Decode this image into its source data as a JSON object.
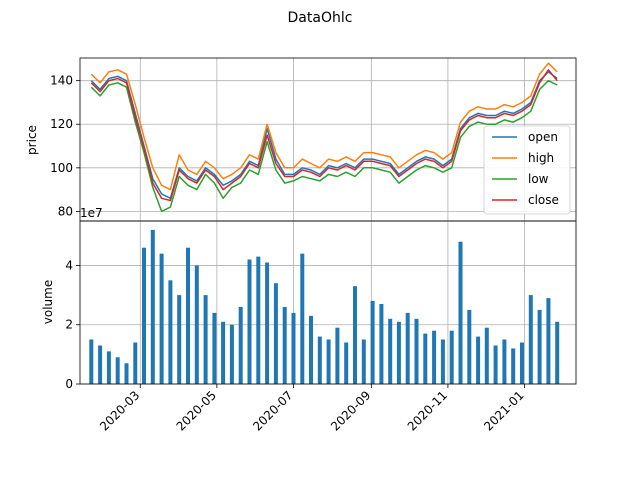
{
  "chart_data": [
    {
      "type": "line",
      "title": "DataOhlc",
      "ylabel": "price",
      "xlabel": "",
      "xlim": [
        "2020-01-13",
        "2021-02-11"
      ],
      "ylim": [
        75.6,
        150.4
      ],
      "yticks": [
        80,
        100,
        120,
        140
      ],
      "grid": true,
      "legend": "center-right",
      "colors": {
        "open": "#1f77b4",
        "high": "#ff7f0e",
        "low": "#2ca02c",
        "close": "#d62728"
      },
      "dates": [
        "2020-01-22",
        "2020-01-29",
        "2020-02-05",
        "2020-02-12",
        "2020-02-19",
        "2020-02-26",
        "2020-03-04",
        "2020-03-11",
        "2020-03-18",
        "2020-03-25",
        "2020-04-01",
        "2020-04-08",
        "2020-04-15",
        "2020-04-22",
        "2020-04-29",
        "2020-05-06",
        "2020-05-13",
        "2020-05-20",
        "2020-05-27",
        "2020-06-03",
        "2020-06-10",
        "2020-06-17",
        "2020-06-24",
        "2020-07-01",
        "2020-07-08",
        "2020-07-15",
        "2020-07-22",
        "2020-07-29",
        "2020-08-05",
        "2020-08-12",
        "2020-08-19",
        "2020-08-26",
        "2020-09-02",
        "2020-09-09",
        "2020-09-16",
        "2020-09-23",
        "2020-09-30",
        "2020-10-07",
        "2020-10-14",
        "2020-10-21",
        "2020-10-28",
        "2020-11-04",
        "2020-11-11",
        "2020-11-18",
        "2020-11-25",
        "2020-12-02",
        "2020-12-09",
        "2020-12-16",
        "2020-12-23",
        "2020-12-30",
        "2021-01-06",
        "2021-01-13",
        "2021-01-20",
        "2021-01-27"
      ],
      "series": [
        {
          "name": "open",
          "values": [
            140,
            136,
            141,
            142,
            140,
            125,
            110,
            95,
            88,
            86,
            100,
            96,
            94,
            100,
            97,
            92,
            94,
            97,
            103,
            101,
            118,
            104,
            97,
            97,
            100,
            99,
            97,
            101,
            100,
            102,
            100,
            104,
            104,
            103,
            102,
            97,
            100,
            103,
            105,
            104,
            101,
            104,
            118,
            123,
            125,
            124,
            124,
            126,
            125,
            127,
            130,
            140,
            144,
            141
          ]
        },
        {
          "name": "high",
          "values": [
            143,
            139,
            144,
            145,
            143,
            129,
            114,
            100,
            92,
            90,
            106,
            99,
            97,
            103,
            100,
            95,
            97,
            100,
            106,
            104,
            120,
            107,
            100,
            100,
            104,
            102,
            100,
            104,
            103,
            105,
            103,
            107,
            107,
            106,
            105,
            100,
            103,
            106,
            108,
            107,
            104,
            107,
            121,
            126,
            128,
            127,
            127,
            129,
            128,
            130,
            133,
            143,
            148,
            144
          ]
        },
        {
          "name": "low",
          "values": [
            137,
            133,
            138,
            139,
            137,
            121,
            107,
            91,
            80,
            82,
            96,
            92,
            90,
            97,
            93,
            86,
            91,
            93,
            99,
            97,
            112,
            99,
            93,
            94,
            96,
            95,
            94,
            97,
            96,
            98,
            96,
            100,
            100,
            99,
            98,
            93,
            96,
            99,
            101,
            100,
            98,
            100,
            114,
            119,
            121,
            120,
            120,
            122,
            121,
            123,
            126,
            136,
            140,
            138
          ]
        },
        {
          "name": "close",
          "values": [
            139,
            135,
            140,
            141,
            139,
            123,
            109,
            93,
            86,
            85,
            99,
            95,
            93,
            99,
            96,
            90,
            93,
            96,
            102,
            100,
            115,
            102,
            96,
            96,
            99,
            98,
            96,
            100,
            99,
            101,
            99,
            103,
            103,
            102,
            101,
            96,
            99,
            102,
            104,
            103,
            100,
            103,
            117,
            122,
            124,
            123,
            123,
            125,
            124,
            126,
            129,
            139,
            145,
            140
          ]
        }
      ]
    },
    {
      "type": "bar",
      "ylabel": "volume",
      "xlabel": "",
      "scale_label": "1e7",
      "xlim": [
        "2020-01-13",
        "2021-02-11"
      ],
      "ylim": [
        0,
        5.5
      ],
      "yticks": [
        0,
        2,
        4
      ],
      "grid": true,
      "color": "#1f77b4",
      "xticks": [
        "2020-03",
        "2020-05",
        "2020-07",
        "2020-09",
        "2020-11",
        "2021-01"
      ],
      "x": [
        "2020-01-22",
        "2020-01-29",
        "2020-02-05",
        "2020-02-12",
        "2020-02-19",
        "2020-02-26",
        "2020-03-04",
        "2020-03-11",
        "2020-03-18",
        "2020-03-25",
        "2020-04-01",
        "2020-04-08",
        "2020-04-15",
        "2020-04-22",
        "2020-04-29",
        "2020-05-06",
        "2020-05-13",
        "2020-05-20",
        "2020-05-27",
        "2020-06-03",
        "2020-06-10",
        "2020-06-17",
        "2020-06-24",
        "2020-07-01",
        "2020-07-08",
        "2020-07-15",
        "2020-07-22",
        "2020-07-29",
        "2020-08-05",
        "2020-08-12",
        "2020-08-19",
        "2020-08-26",
        "2020-09-02",
        "2020-09-09",
        "2020-09-16",
        "2020-09-23",
        "2020-09-30",
        "2020-10-07",
        "2020-10-14",
        "2020-10-21",
        "2020-10-28",
        "2020-11-04",
        "2020-11-11",
        "2020-11-18",
        "2020-11-25",
        "2020-12-02",
        "2020-12-09",
        "2020-12-16",
        "2020-12-23",
        "2020-12-30",
        "2021-01-06",
        "2021-01-13",
        "2021-01-20",
        "2021-01-27"
      ],
      "values": [
        1.5,
        1.3,
        1.1,
        0.9,
        0.7,
        1.4,
        4.6,
        5.2,
        4.4,
        3.5,
        3.0,
        4.6,
        4.0,
        3.0,
        2.4,
        2.1,
        2.0,
        2.6,
        4.2,
        4.3,
        4.1,
        3.4,
        2.6,
        2.4,
        4.4,
        2.3,
        1.6,
        1.5,
        1.9,
        1.4,
        3.3,
        1.5,
        2.8,
        2.7,
        2.2,
        2.1,
        2.4,
        2.2,
        1.7,
        1.8,
        1.5,
        1.8,
        4.8,
        2.5,
        1.6,
        1.9,
        1.3,
        1.5,
        1.2,
        1.4,
        3.0,
        2.5,
        2.9,
        2.1
      ]
    }
  ]
}
